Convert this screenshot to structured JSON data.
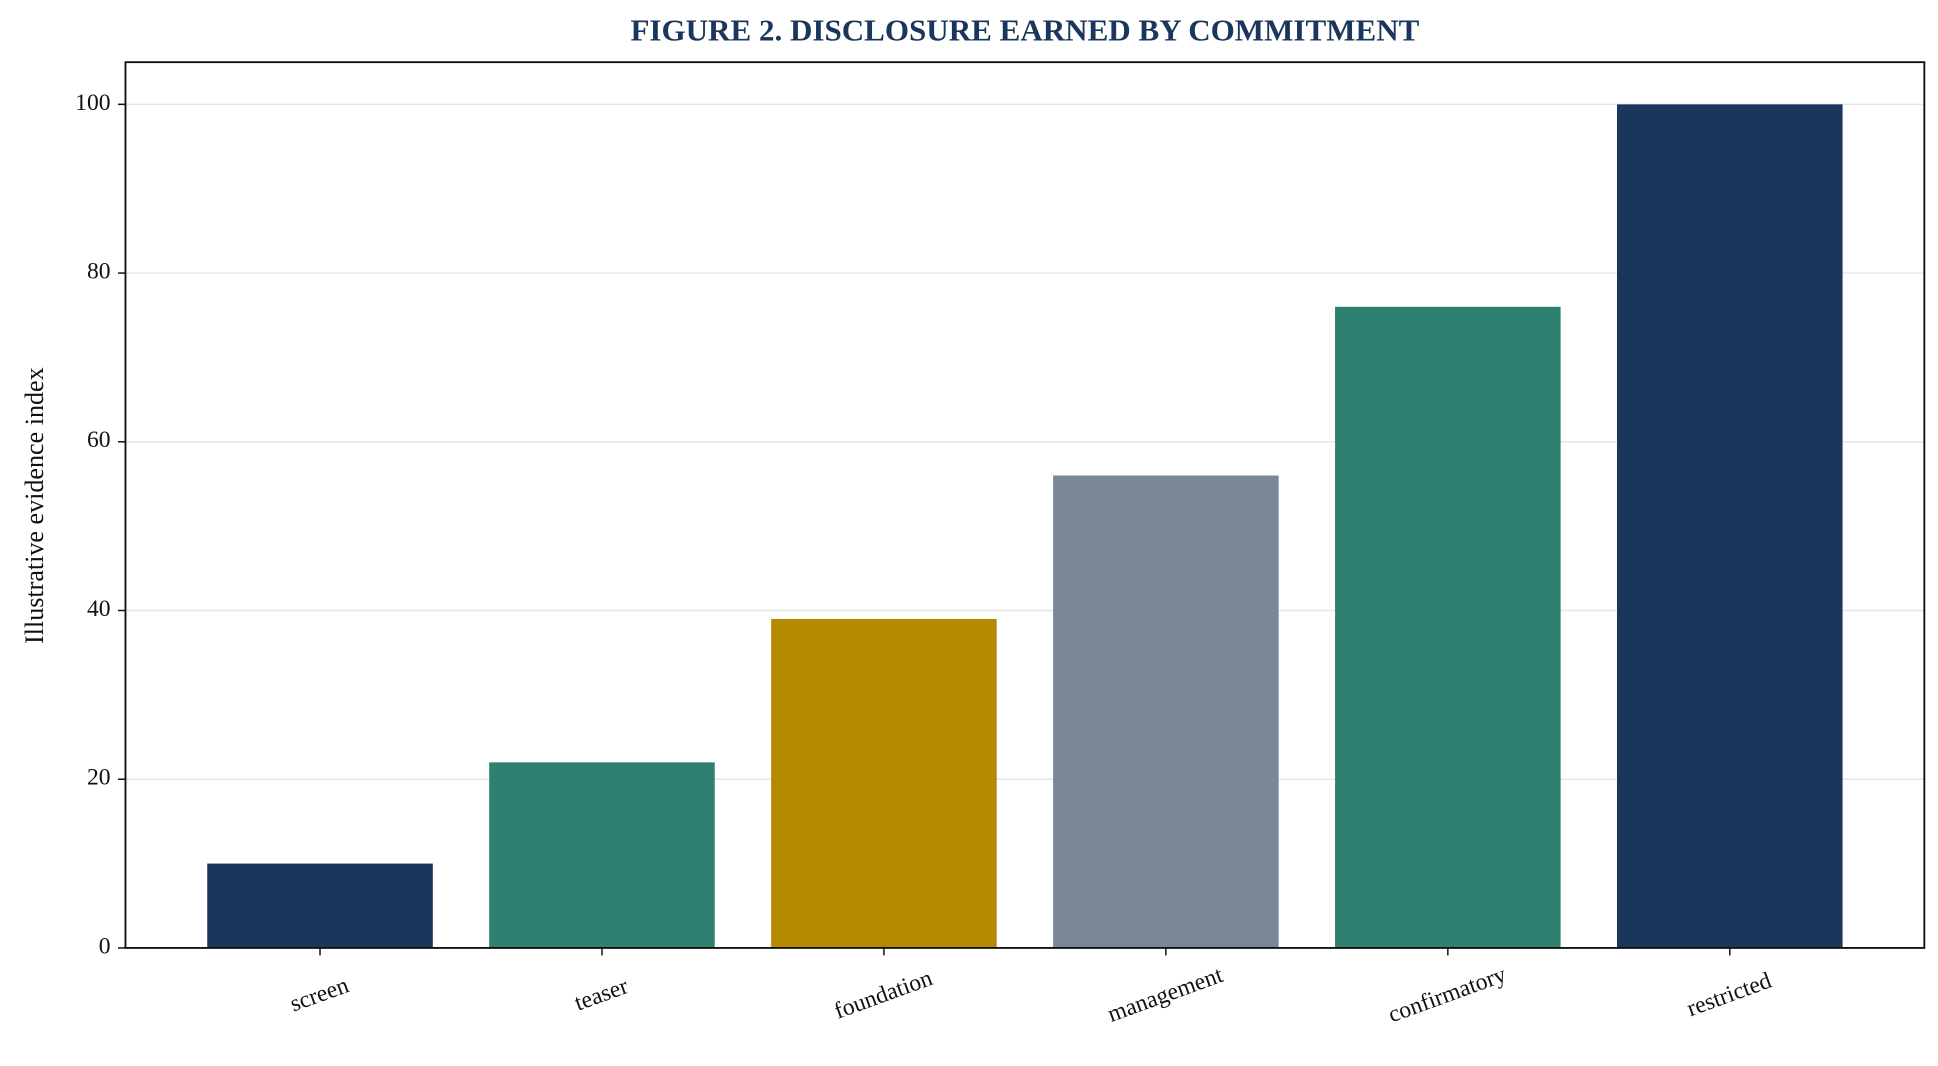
{
  "chart_data": {
    "type": "bar",
    "title": "FIGURE 2. DISCLOSURE EARNED BY COMMITMENT",
    "y_label": "Illustrative evidence index",
    "categories": [
      "screen",
      "teaser",
      "foundation",
      "management",
      "confirmatory",
      "restricted"
    ],
    "values": [
      10,
      22,
      39,
      56,
      76,
      100
    ],
    "colors": [
      "#1a365d",
      "#2e8070",
      "#b38a00",
      "#7a8796",
      "#2e8070",
      "#1a365d"
    ],
    "ylim": [
      0,
      105
    ],
    "yticks": [
      0,
      20,
      40,
      60,
      80,
      100
    ],
    "grid": true
  }
}
